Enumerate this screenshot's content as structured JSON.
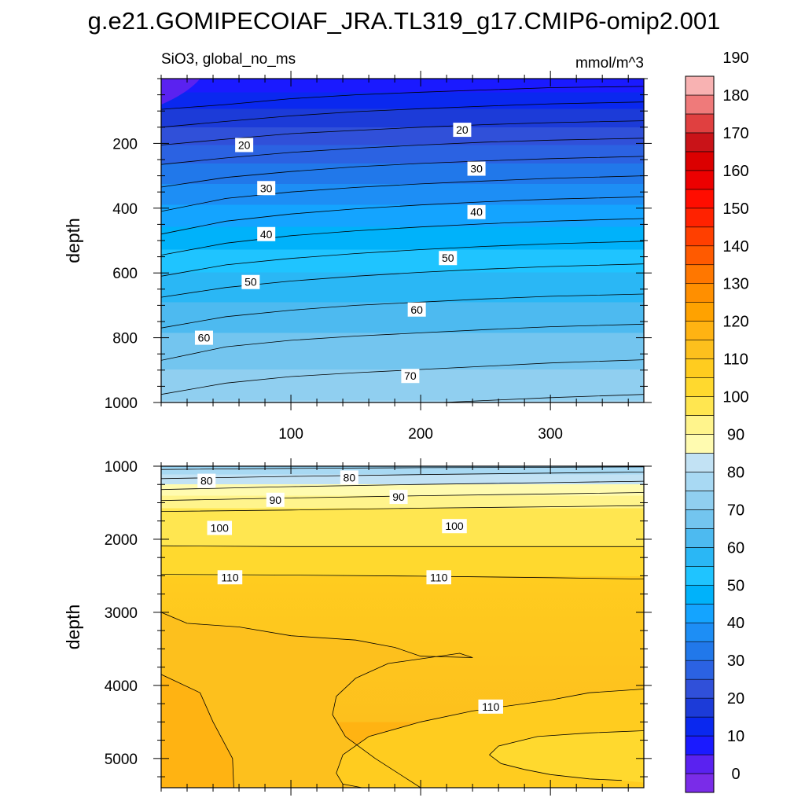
{
  "chart_data": {
    "type": "contour",
    "title": "g.e21.GOMIPECOIAF_JRA.TL319_g17.CMIP6-omip2.001",
    "variable_label": "SiO3, global_no_ms",
    "units_label": "mmol/m^3",
    "panels": [
      {
        "name": "upper",
        "ylabel": "depth",
        "xlim": [
          0,
          372
        ],
        "ylim": [
          1000,
          0
        ],
        "x_ticks": [
          100,
          200,
          300
        ],
        "y_ticks": [
          200,
          400,
          600,
          800,
          1000
        ],
        "contour_lines": [
          {
            "level": 10,
            "x": [
              0,
              50,
              100,
              150,
              200,
              250,
              300,
              372
            ],
            "y": [
              95,
              80,
              62,
              50,
              42,
              35,
              28,
              24
            ]
          },
          {
            "level": 15,
            "x": [
              0,
              50,
              100,
              150,
              200,
              250,
              300,
              372
            ],
            "y": [
              150,
              132,
              115,
              102,
              93,
              85,
              78,
              72
            ]
          },
          {
            "level": 20,
            "x": [
              0,
              50,
              100,
              150,
              200,
              250,
              300,
              372
            ],
            "y": [
              205,
              187,
              170,
              160,
              150,
              142,
              136,
              130
            ]
          },
          {
            "level": 25,
            "x": [
              0,
              50,
              100,
              150,
              200,
              250,
              300,
              372
            ],
            "y": [
              265,
              245,
              228,
              215,
              205,
              196,
              190,
              184
            ]
          },
          {
            "level": 30,
            "x": [
              0,
              50,
              100,
              150,
              200,
              250,
              300,
              372
            ],
            "y": [
              335,
              305,
              287,
              272,
              262,
              254,
              247,
              240
            ]
          },
          {
            "level": 35,
            "x": [
              0,
              50,
              100,
              150,
              200,
              250,
              300,
              372
            ],
            "y": [
              410,
              370,
              350,
              336,
              325,
              316,
              308,
              300
            ]
          },
          {
            "level": 40,
            "x": [
              0,
              50,
              100,
              150,
              200,
              250,
              300,
              372
            ],
            "y": [
              480,
              440,
              418,
              402,
              390,
              380,
              372,
              365
            ]
          },
          {
            "level": 45,
            "x": [
              0,
              50,
              100,
              150,
              200,
              250,
              300,
              372
            ],
            "y": [
              545,
              508,
              485,
              470,
              458,
              448,
              440,
              432
            ]
          },
          {
            "level": 50,
            "x": [
              0,
              50,
              100,
              150,
              200,
              250,
              300,
              372
            ],
            "y": [
              610,
              575,
              555,
              540,
              528,
              518,
              510,
              502
            ]
          },
          {
            "level": 55,
            "x": [
              0,
              50,
              100,
              150,
              200,
              250,
              300,
              372
            ],
            "y": [
              675,
              645,
              625,
              610,
              598,
              588,
              580,
              572
            ]
          },
          {
            "level": 60,
            "x": [
              0,
              50,
              100,
              150,
              200,
              250,
              300,
              372
            ],
            "y": [
              770,
              735,
              715,
              700,
              690,
              680,
              672,
              665
            ]
          },
          {
            "level": 65,
            "x": [
              0,
              50,
              100,
              150,
              200,
              250,
              300,
              372
            ],
            "y": [
              870,
              828,
              808,
              795,
              785,
              775,
              766,
              758
            ]
          },
          {
            "level": 70,
            "x": [
              0,
              50,
              100,
              150,
              200,
              250,
              300,
              372
            ],
            "y": [
              975,
              940,
              920,
              908,
              898,
              888,
              878,
              868
            ]
          },
          {
            "level": 75,
            "x": [
              150,
              200,
              250,
              300,
              372
            ],
            "y": [
              1012,
              1003,
              994,
              985,
              975
            ]
          }
        ],
        "contour_labels": [
          {
            "text": "20",
            "x": 64,
            "y": 205
          },
          {
            "text": "20",
            "x": 232,
            "y": 158
          },
          {
            "text": "30",
            "x": 81,
            "y": 338
          },
          {
            "text": "30",
            "x": 243,
            "y": 278
          },
          {
            "text": "40",
            "x": 81,
            "y": 480
          },
          {
            "text": "40",
            "x": 243,
            "y": 412
          },
          {
            "text": "50",
            "x": 69,
            "y": 628
          },
          {
            "text": "50",
            "x": 221,
            "y": 554
          },
          {
            "text": "60",
            "x": 33,
            "y": 800
          },
          {
            "text": "60",
            "x": 197,
            "y": 713
          },
          {
            "text": "70",
            "x": 192,
            "y": 918
          }
        ]
      },
      {
        "name": "lower",
        "ylabel": "depth",
        "xlim": [
          0,
          372
        ],
        "ylim": [
          5400,
          1000
        ],
        "x_ticks": [
          100,
          200,
          300
        ],
        "y_ticks": [
          1000,
          2000,
          3000,
          4000,
          5000
        ],
        "contour_lines": [
          {
            "level": 75,
            "x": [
              0,
              100,
              200,
              300,
              372
            ],
            "y": [
              1045,
              1030,
              1020,
              1015,
              1010
            ]
          },
          {
            "level": 80,
            "x": [
              0,
              100,
              200,
              300,
              372
            ],
            "y": [
              1170,
              1140,
              1115,
              1095,
              1080
            ]
          },
          {
            "level": 85,
            "x": [
              0,
              100,
              200,
              300,
              372
            ],
            "y": [
              1320,
              1280,
              1250,
              1225,
              1205
            ]
          },
          {
            "level": 90,
            "x": [
              0,
              100,
              200,
              300,
              372
            ],
            "y": [
              1470,
              1435,
              1405,
              1380,
              1360
            ]
          },
          {
            "level": 95,
            "x": [
              0,
              100,
              200,
              300,
              372
            ],
            "y": [
              1620,
              1600,
              1575,
              1555,
              1540
            ]
          },
          {
            "level": 100,
            "x": [
              0,
              100,
              200,
              300,
              372
            ],
            "y": [
              2090,
              2100,
              2100,
              2100,
              2100
            ]
          },
          {
            "level": 105,
            "x": [
              0,
              100,
              200,
              300,
              372
            ],
            "y": [
              2480,
              2490,
              2505,
              2525,
              2545
            ]
          },
          {
            "level": 110,
            "x": [
              0,
              20,
              60,
              100,
              150,
              180,
              200,
              240,
              230,
              175,
              150,
              135,
              132,
              142,
              165,
              200,
              260,
              300,
              372
            ],
            "y": [
              3000,
              3150,
              3200,
              3320,
              3380,
              3480,
              3600,
              3620,
              3560,
              3700,
              3900,
              4150,
              4400,
              4700,
              5000,
              5400,
              5420,
              5400,
              5400
            ]
          },
          {
            "level": 115,
            "x": [
              0,
              30,
              40,
              55,
              56
            ],
            "y": [
              3850,
              4100,
              4500,
              5000,
              5400
            ]
          },
          {
            "level": 110,
            "x": [
              372,
              330,
              300,
              240,
              200,
              160,
              140,
              135,
              140,
              155
            ],
            "y": [
              4050,
              4100,
              4200,
              4350,
              4500,
              4700,
              4950,
              5200,
              5350,
              5400
            ]
          },
          {
            "level": 105,
            "x": [
              372,
              330,
              290,
              260,
              253,
              262,
              280,
              300,
              330,
              355
            ],
            "y": [
              4620,
              4650,
              4700,
              4830,
              4950,
              5070,
              5150,
              5220,
              5280,
              5300
            ]
          }
        ],
        "contour_labels": [
          {
            "text": "80",
            "x": 35,
            "y": 1200
          },
          {
            "text": "80",
            "x": 145,
            "y": 1155
          },
          {
            "text": "90",
            "x": 88,
            "y": 1460
          },
          {
            "text": "90",
            "x": 183,
            "y": 1420
          },
          {
            "text": "100",
            "x": 45,
            "y": 1845
          },
          {
            "text": "100",
            "x": 226,
            "y": 1820
          },
          {
            "text": "110",
            "x": 53,
            "y": 2520
          },
          {
            "text": "110",
            "x": 214,
            "y": 2520
          },
          {
            "text": "110",
            "x": 254,
            "y": 4290
          }
        ]
      }
    ],
    "colorbar": {
      "levels": [
        0,
        10,
        20,
        30,
        40,
        50,
        60,
        70,
        80,
        90,
        100,
        110,
        120,
        130,
        140,
        150,
        160,
        170,
        180,
        190
      ],
      "colors": [
        "#7a2ce8",
        "#5a22f0",
        "#1a1aff",
        "#0a28ef",
        "#1c3bd8",
        "#3050d9",
        "#2b62e2",
        "#2178ea",
        "#1d8ef5",
        "#14a4ff",
        "#00b2fa",
        "#1fc4ff",
        "#2ab7f5",
        "#4dbaf0",
        "#73c5ef",
        "#90cff0",
        "#a8d9f3",
        "#c2e2f4",
        "#fffbb0",
        "#fff48c",
        "#ffe650",
        "#ffd92e",
        "#ffcc1f",
        "#fdc01d",
        "#ffb312",
        "#ffa200",
        "#ff8f00",
        "#ff7700",
        "#ff5a00",
        "#ff3f00",
        "#ff2200",
        "#ff0d00",
        "#ec0000",
        "#db0000",
        "#c91318",
        "#e04040",
        "#ef7a7a",
        "#f8b2b2"
      ]
    }
  }
}
